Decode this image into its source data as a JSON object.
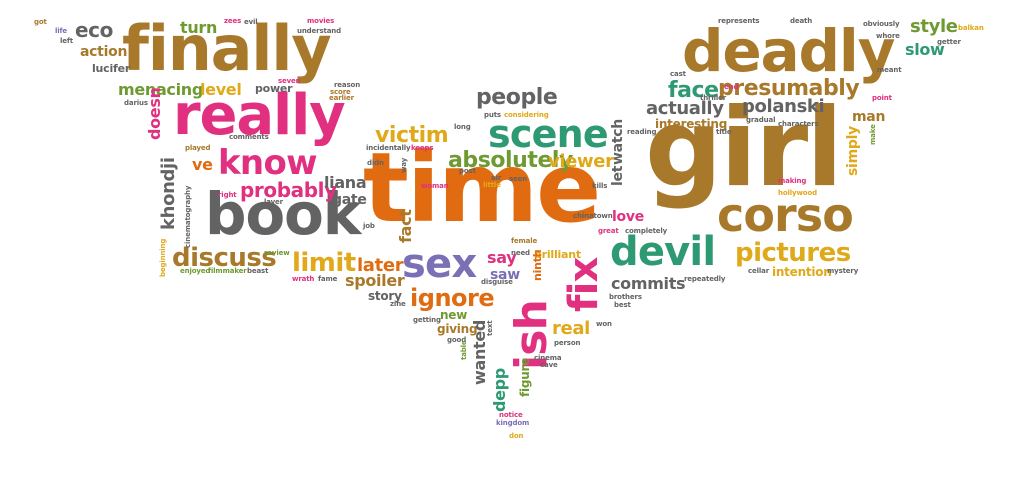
{
  "palette": {
    "brown": "#a8792a",
    "orange": "#e06b10",
    "gray": "#636363",
    "pink": "#e0307f",
    "green": "#2e9a73",
    "purple": "#7b6fb5",
    "yellow": "#e0a91a",
    "olive": "#6f9a32"
  },
  "words": [
    {
      "text": "time"
    },
    {
      "text": "girl"
    },
    {
      "text": "finally"
    },
    {
      "text": "deadly"
    },
    {
      "text": "really"
    },
    {
      "text": "book"
    },
    {
      "text": "corso"
    },
    {
      "text": "scene"
    },
    {
      "text": "know"
    },
    {
      "text": "sex"
    },
    {
      "text": "devil"
    },
    {
      "text": "fix"
    },
    {
      "text": "ish"
    },
    {
      "text": "pictures"
    },
    {
      "text": "discuss"
    },
    {
      "text": "face"
    },
    {
      "text": "presumably"
    },
    {
      "text": "absolutely"
    },
    {
      "text": "limit"
    },
    {
      "text": "ignore"
    },
    {
      "text": "probably"
    },
    {
      "text": "people"
    },
    {
      "text": "victim"
    },
    {
      "text": "viewer"
    },
    {
      "text": "actually"
    },
    {
      "text": "polanski"
    },
    {
      "text": "menacing"
    },
    {
      "text": "level"
    },
    {
      "text": "eco"
    },
    {
      "text": "turn"
    },
    {
      "text": "action"
    },
    {
      "text": "style"
    },
    {
      "text": "slow"
    },
    {
      "text": "later"
    },
    {
      "text": "spoiler"
    },
    {
      "text": "liana"
    },
    {
      "text": "gate"
    },
    {
      "text": "commits"
    },
    {
      "text": "real"
    },
    {
      "text": "say"
    },
    {
      "text": "saw"
    },
    {
      "text": "love"
    },
    {
      "text": "interesting"
    },
    {
      "text": "man"
    },
    {
      "text": "lucifer"
    },
    {
      "text": "power"
    },
    {
      "text": "story"
    },
    {
      "text": "giving"
    },
    {
      "text": "new"
    },
    {
      "text": "brilliant"
    },
    {
      "text": "intention"
    },
    {
      "text": "khondji"
    },
    {
      "text": "doesn"
    },
    {
      "text": "ve"
    },
    {
      "text": "fact"
    },
    {
      "text": "let"
    },
    {
      "text": "watch"
    },
    {
      "text": "wanted"
    },
    {
      "text": "depp"
    },
    {
      "text": "figure"
    },
    {
      "text": "ninth"
    },
    {
      "text": "simply"
    },
    {
      "text": "got"
    },
    {
      "text": "life"
    },
    {
      "text": "left"
    },
    {
      "text": "zees"
    },
    {
      "text": "evil"
    },
    {
      "text": "movies"
    },
    {
      "text": "understand"
    },
    {
      "text": "seven"
    },
    {
      "text": "reason"
    },
    {
      "text": "score"
    },
    {
      "text": "earlier"
    },
    {
      "text": "darius"
    },
    {
      "text": "played"
    },
    {
      "text": "comments"
    },
    {
      "text": "didn"
    },
    {
      "text": "incidentally"
    },
    {
      "text": "keeps"
    },
    {
      "text": "right"
    },
    {
      "text": "layer"
    },
    {
      "text": "cinematography"
    },
    {
      "text": "review"
    },
    {
      "text": "beginning"
    },
    {
      "text": "enjoyed"
    },
    {
      "text": "filmmaker"
    },
    {
      "text": "beast"
    },
    {
      "text": "wrath"
    },
    {
      "text": "fame"
    },
    {
      "text": "way"
    },
    {
      "text": "woman"
    },
    {
      "text": "long"
    },
    {
      "text": "puts"
    },
    {
      "text": "considering"
    },
    {
      "text": "post"
    },
    {
      "text": "air"
    },
    {
      "text": "little"
    },
    {
      "text": "seen"
    },
    {
      "text": "job"
    },
    {
      "text": "female"
    },
    {
      "text": "need"
    },
    {
      "text": "disguise"
    },
    {
      "text": "zine"
    },
    {
      "text": "getting"
    },
    {
      "text": "good"
    },
    {
      "text": "text"
    },
    {
      "text": "cinema"
    },
    {
      "text": "cave"
    },
    {
      "text": "person"
    },
    {
      "text": "notice"
    },
    {
      "text": "kingdom"
    },
    {
      "text": "don"
    },
    {
      "text": "table"
    },
    {
      "text": "chinatown"
    },
    {
      "text": "great"
    },
    {
      "text": "completely"
    },
    {
      "text": "kills"
    },
    {
      "text": "reading"
    },
    {
      "text": "gradual"
    },
    {
      "text": "thriller"
    },
    {
      "text": "end"
    },
    {
      "text": "cast"
    },
    {
      "text": "title"
    },
    {
      "text": "characters"
    },
    {
      "text": "making"
    },
    {
      "text": "hollywood"
    },
    {
      "text": "cellar"
    },
    {
      "text": "mystery"
    },
    {
      "text": "repeatedly"
    },
    {
      "text": "brothers"
    },
    {
      "text": "best"
    },
    {
      "text": "won"
    },
    {
      "text": "represents"
    },
    {
      "text": "death"
    },
    {
      "text": "obviously"
    },
    {
      "text": "whore"
    },
    {
      "text": "balkan"
    },
    {
      "text": "getter"
    },
    {
      "text": "meant"
    },
    {
      "text": "point"
    },
    {
      "text": "make"
    }
  ]
}
